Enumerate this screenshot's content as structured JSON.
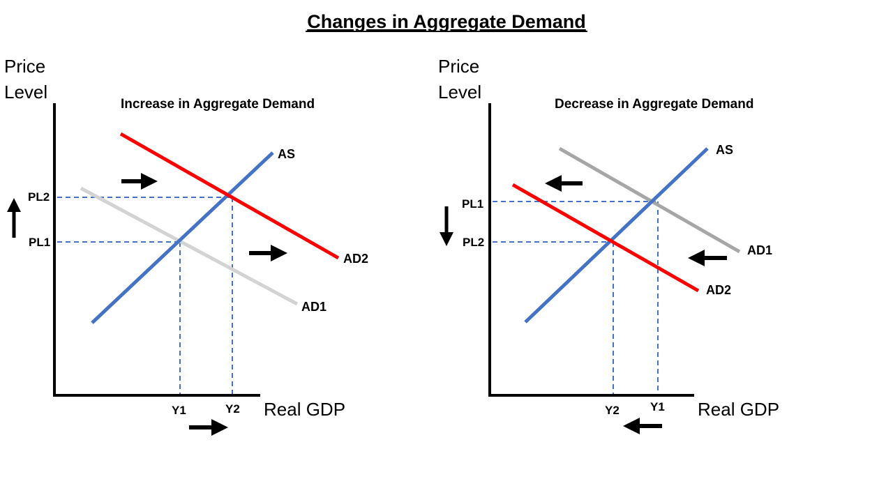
{
  "title": "Changes in Aggregate Demand",
  "colors": {
    "as": "#4472C4",
    "ad_new": "#FF0000",
    "ad_old_left": "#D3D3D3",
    "ad_old_right": "#A6A6A6",
    "guide": "#4472C4",
    "axis": "#000000",
    "arrow": "#000000"
  },
  "panels": [
    {
      "title": "Increase in Aggregate Demand",
      "y_axis_label_line1": "Price",
      "y_axis_label_line2": "Level",
      "x_axis_label": "Real GDP",
      "curves": {
        "as": "AS",
        "ad_old": "AD1",
        "ad_new": "AD2"
      },
      "ticks": {
        "price_upper": "PL2",
        "price_lower": "PL1",
        "q_left": "Y1",
        "q_right": "Y2"
      },
      "shift_direction": "right",
      "arrows": [
        "up-icon",
        "right-arrow-icon",
        "right-arrow-icon",
        "right-arrow-icon"
      ]
    },
    {
      "title": "Decrease in Aggregate Demand",
      "y_axis_label_line1": "Price",
      "y_axis_label_line2": "Level",
      "x_axis_label": "Real GDP",
      "curves": {
        "as": "AS",
        "ad_old": "AD1",
        "ad_new": "AD2"
      },
      "ticks": {
        "price_upper": "PL1",
        "price_lower": "PL2",
        "q_left": "Y2",
        "q_right": "Y1"
      },
      "shift_direction": "left",
      "arrows": [
        "down-icon",
        "left-arrow-icon",
        "left-arrow-icon",
        "left-arrow-icon"
      ]
    }
  ]
}
